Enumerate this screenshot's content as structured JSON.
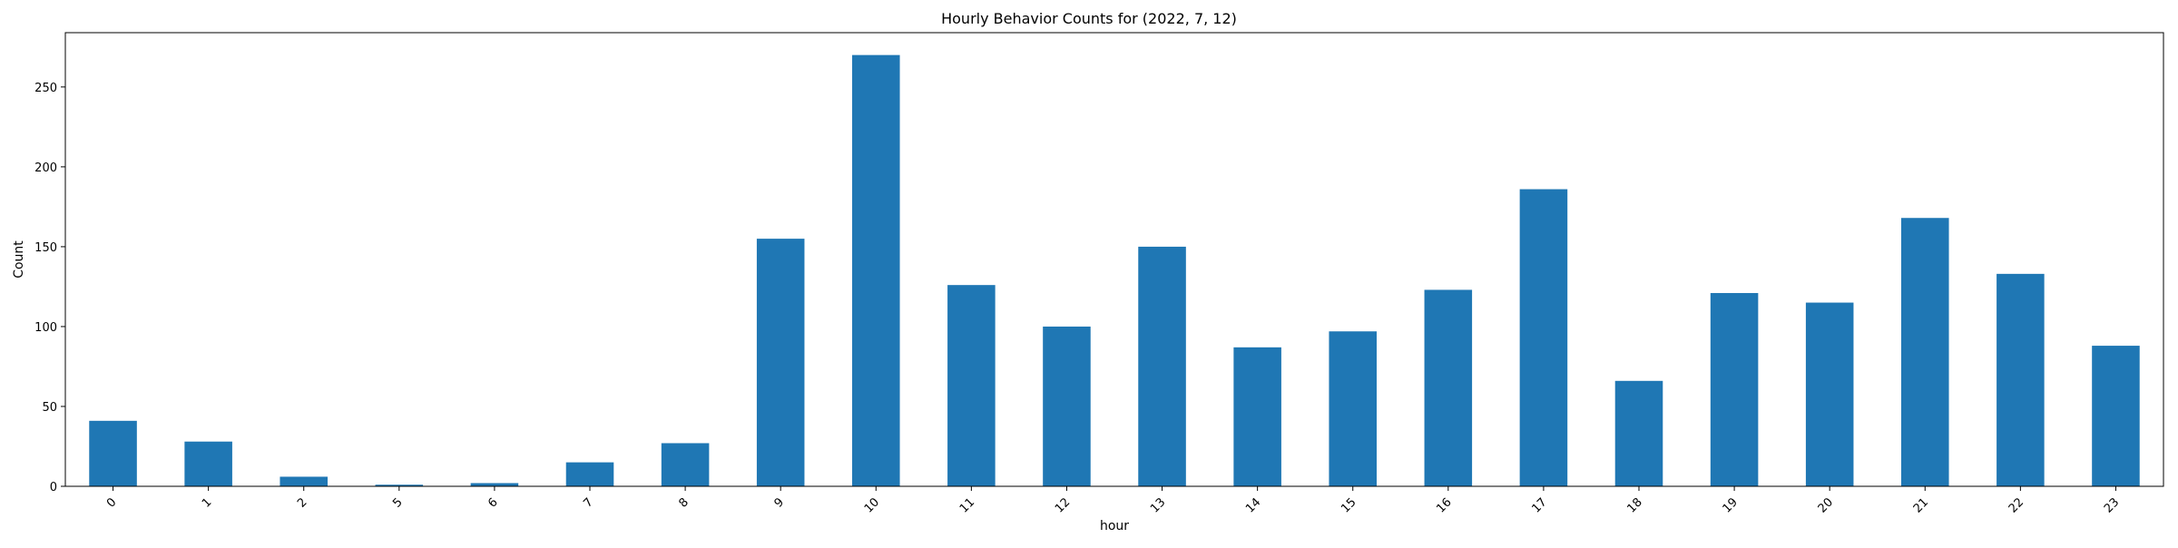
{
  "chart_data": {
    "type": "bar",
    "title": "Hourly Behavior Counts for (2022, 7, 12)",
    "xlabel": "hour",
    "ylabel": "Count",
    "categories": [
      "0",
      "1",
      "2",
      "5",
      "6",
      "7",
      "8",
      "9",
      "10",
      "11",
      "12",
      "13",
      "14",
      "15",
      "16",
      "17",
      "18",
      "19",
      "20",
      "21",
      "22",
      "23"
    ],
    "values": [
      41,
      28,
      6,
      1,
      2,
      15,
      27,
      155,
      270,
      126,
      100,
      150,
      87,
      97,
      123,
      186,
      66,
      121,
      115,
      168,
      133,
      88
    ],
    "ylim": [
      0,
      284
    ],
    "yticks": [
      0,
      50,
      100,
      150,
      200,
      250
    ],
    "grid": false,
    "legend": "none",
    "bar_color": "#1f77b4",
    "xtick_rotation": -45
  }
}
